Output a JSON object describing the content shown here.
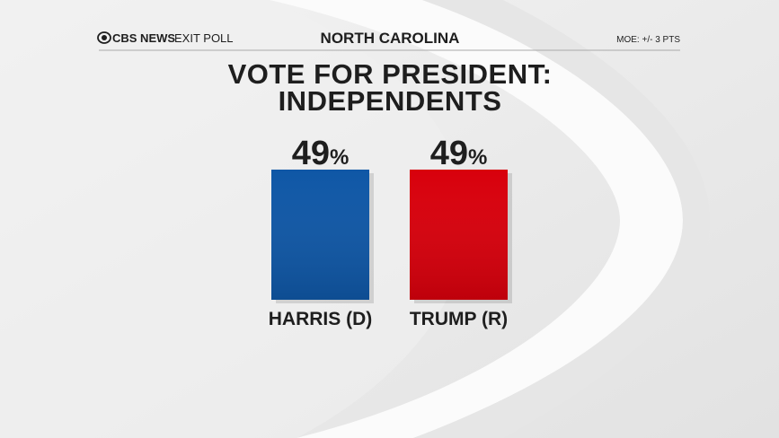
{
  "header": {
    "brand": "CBS NEWS",
    "subbrand": "EXIT POLL",
    "region": "NORTH CAROLINA",
    "moe": "MOE: +/- 3 PTS"
  },
  "chart_data": {
    "type": "bar",
    "title": [
      "VOTE FOR PRESIDENT:",
      "INDEPENDENTS"
    ],
    "categories": [
      "HARRIS (D)",
      "TRUMP (R)"
    ],
    "values": [
      49,
      49
    ],
    "value_labels": [
      "49%",
      "49%"
    ],
    "colors": [
      "#0f57a6",
      "#d8000c"
    ]
  }
}
